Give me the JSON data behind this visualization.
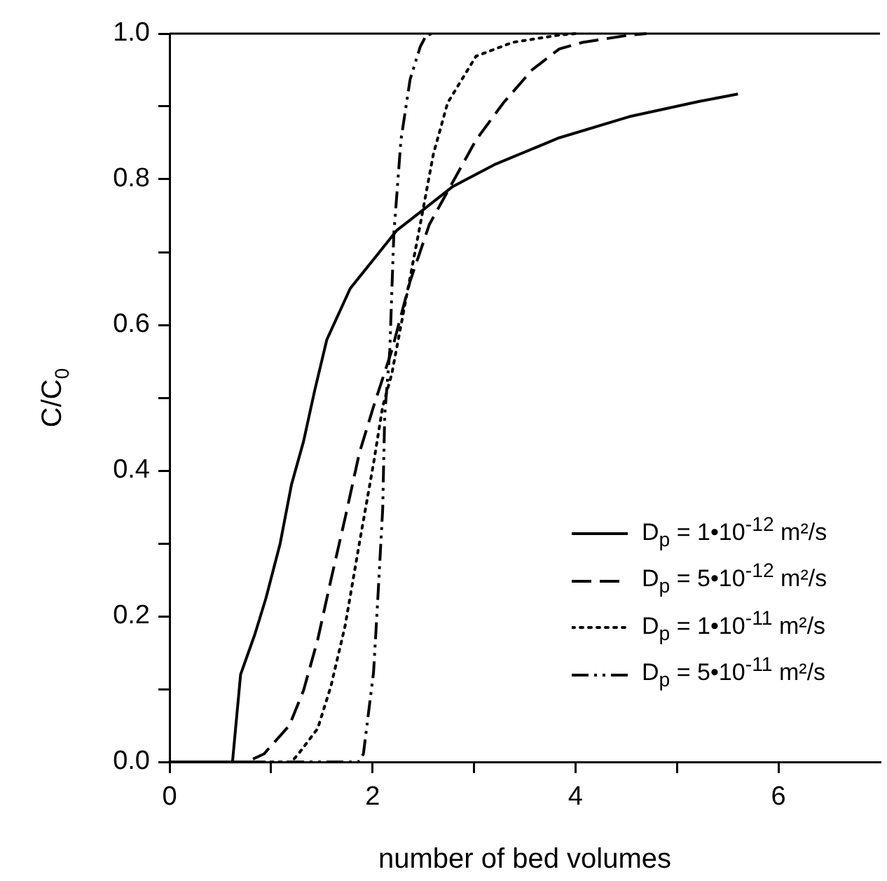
{
  "chart_data": {
    "type": "line",
    "xlabel": "number of bed volumes",
    "ylabel": "C/C$_{0}$",
    "xlim": [
      0,
      7
    ],
    "ylim": [
      0,
      1
    ],
    "xticks": [
      0,
      {
        "value": 1,
        "label": null
      },
      2,
      {
        "value": 3,
        "label": null
      },
      4,
      {
        "value": 5,
        "label": null
      },
      6
    ],
    "yticks": [
      {
        "value": 0,
        "label": "0.0"
      },
      {
        "value": 0.1,
        "label": null
      },
      {
        "value": 0.2,
        "label": "0.2"
      },
      {
        "value": 0.3,
        "label": null
      },
      {
        "value": 0.4,
        "label": "0.4"
      },
      {
        "value": 0.5,
        "label": null
      },
      {
        "value": 0.6,
        "label": "0.6"
      },
      {
        "value": 0.7,
        "label": null
      },
      {
        "value": 0.8,
        "label": "0.8"
      },
      {
        "value": 0.9,
        "label": null
      },
      {
        "value": 1,
        "label": "1.0"
      }
    ],
    "grid": false,
    "legend": "bottom right",
    "marker": "none",
    "series": [
      {
        "name": "D$_{p}$ = 1•10$^{-12}$ m²/s",
        "color": "#000000",
        "line_style": "solid",
        "x": [
          0,
          0.62,
          0.7,
          0.84,
          0.95,
          1.09,
          1.2,
          1.32,
          1.43,
          1.55,
          1.78,
          2.01,
          2.24,
          2.47,
          2.79,
          3.2,
          3.84,
          4.53,
          5.22,
          5.6
        ],
        "values": [
          0,
          0,
          0.12,
          0.175,
          0.225,
          0.3,
          0.38,
          0.44,
          0.51,
          0.58,
          0.65,
          0.69,
          0.73,
          0.755,
          0.79,
          0.82,
          0.857,
          0.886,
          0.907,
          0.917
        ]
      },
      {
        "name": "D$_{p}$ = 5•10$^{-12}$ m²/s",
        "color": "#000000",
        "line_style": "dashed",
        "x": [
          0,
          0.76,
          0.93,
          1.18,
          1.32,
          1.46,
          1.59,
          1.73,
          1.87,
          2.01,
          2.19,
          2.37,
          2.56,
          2.79,
          3.02,
          3.29,
          3.57,
          3.84,
          4.07,
          4.53,
          4.7
        ],
        "values": [
          0,
          0,
          0.011,
          0.05,
          0.098,
          0.168,
          0.25,
          0.335,
          0.424,
          0.488,
          0.565,
          0.66,
          0.738,
          0.796,
          0.854,
          0.905,
          0.95,
          0.979,
          0.988,
          0.998,
          1
        ]
      },
      {
        "name": "D$_{p}$ = 1•10$^{-11}$ m²/s",
        "color": "#000000",
        "line_style": "dotted",
        "x": [
          0,
          1.2,
          1.27,
          1.46,
          1.59,
          1.73,
          1.87,
          2.01,
          2.1,
          2.19,
          2.33,
          2.47,
          2.6,
          2.74,
          3.02,
          3.38,
          3.84,
          4.0
        ],
        "values": [
          0,
          0,
          0.011,
          0.046,
          0.104,
          0.187,
          0.3,
          0.41,
          0.488,
          0.533,
          0.636,
          0.738,
          0.835,
          0.905,
          0.969,
          0.988,
          0.998,
          1
        ]
      },
      {
        "name": "D$_{p}$ = 5•10$^{-11}$ m²/s",
        "color": "#000000",
        "line_style": "dashdot",
        "x": [
          0,
          1.86,
          1.91,
          2.01,
          2.05,
          2.1,
          2.12,
          2.17,
          2.21,
          2.28,
          2.37,
          2.47,
          2.53,
          2.6
        ],
        "values": [
          0,
          0,
          0.011,
          0.123,
          0.219,
          0.347,
          0.476,
          0.565,
          0.725,
          0.854,
          0.937,
          0.982,
          0.998,
          1
        ]
      }
    ]
  }
}
